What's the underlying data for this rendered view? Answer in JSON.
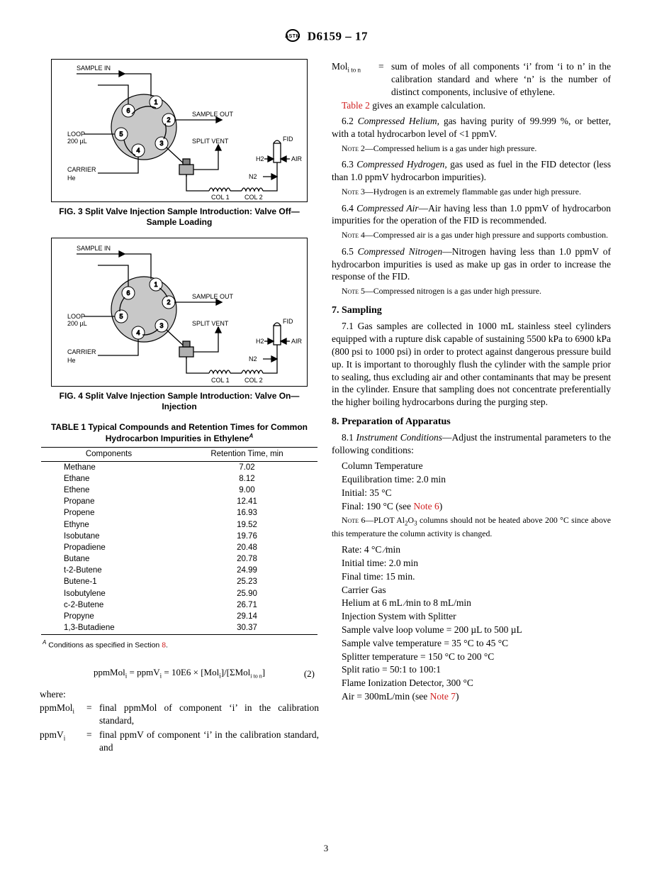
{
  "header": {
    "designation": "D6159 – 17"
  },
  "fig3": {
    "caption": "FIG. 3 Split Valve Injection Sample Introduction: Valve Off—Sample Loading",
    "labels": {
      "sample_in": "SAMPLE IN",
      "sample_out": "SAMPLE OUT",
      "loop": "LOOP",
      "loop_vol": "200 µL",
      "carrier": "CARRIER",
      "he": "He",
      "split_vent": "SPLIT VENT",
      "n2": "N2",
      "h2": "H2",
      "air": "AIR",
      "fid": "FID",
      "col1": "COL 1",
      "col2": "COL 2"
    },
    "ports": [
      "1",
      "2",
      "3",
      "4",
      "5",
      "6"
    ],
    "colors": {
      "stroke": "#000000",
      "fill_circle": "#c8c8c8",
      "port_fill": "#ffffff"
    }
  },
  "fig4": {
    "caption": "FIG. 4 Split Valve Injection Sample Introduction: Valve On—Injection",
    "labels": {
      "sample_in": "SAMPLE IN",
      "sample_out": "SAMPLE OUT",
      "loop": "LOOP",
      "loop_vol": "200 µL",
      "carrier": "CARRIER",
      "he": "He",
      "split_vent": "SPLIT VENT",
      "n2": "N2",
      "h2": "H2",
      "air": "AIR",
      "fid": "FID",
      "col1": "COL 1",
      "col2": "COL 2"
    },
    "ports": [
      "1",
      "2",
      "3",
      "4",
      "5",
      "6"
    ],
    "colors": {
      "stroke": "#000000",
      "fill_circle": "#c8c8c8",
      "port_fill": "#ffffff"
    }
  },
  "table1": {
    "title_l1": "TABLE 1 Typical Compounds and Retention Times for Common",
    "title_l2": "Hydrocarbon Impurities in Ethylene",
    "title_sup": "A",
    "headers": [
      "Components",
      "Retention Time, min"
    ],
    "rows": [
      [
        "Methane",
        "7.02"
      ],
      [
        "Ethane",
        "8.12"
      ],
      [
        "Ethene",
        "9.00"
      ],
      [
        "Propane",
        "12.41"
      ],
      [
        "Propene",
        "16.93"
      ],
      [
        "Ethyne",
        "19.52"
      ],
      [
        "Isobutane",
        "19.76"
      ],
      [
        "Propadiene",
        "20.48"
      ],
      [
        "Butane",
        "20.78"
      ],
      [
        "t-2-Butene",
        "24.99"
      ],
      [
        "Butene-1",
        "25.23"
      ],
      [
        "Isobutylene",
        "25.90"
      ],
      [
        "c-2-Butene",
        "26.71"
      ],
      [
        "Propyne",
        "29.14"
      ],
      [
        "1,3-Butadiene",
        "30.37"
      ]
    ],
    "footnote_pre": "Conditions as specified in Section ",
    "footnote_link": "8",
    "footnote_post": "."
  },
  "equation": {
    "text": "ppmMol",
    "body": " =  ppmV",
    "body2": " = 10E6 × [Mol",
    "body3": "]/[ΣMol",
    "body4": "]",
    "sub_i": "i",
    "sub_iton": "i to n",
    "num": "(2)"
  },
  "defs": {
    "where": "where:",
    "rows": [
      {
        "term": "ppmMol",
        "sub": "i",
        "body": "final ppmMol of component ‘i’ in the calibration standard,"
      },
      {
        "term": "ppmV",
        "sub": "i",
        "body": "final ppmV of component ‘i’ in the calibration standard, and"
      },
      {
        "term": "Mol",
        "sub": "i to n",
        "body": "sum of moles of all components ‘i’ from ‘i to n’ in the calibration standard and where ‘n’ is the number of distinct components, inclusive of ethylene."
      }
    ],
    "eq": "="
  },
  "right": {
    "table2_line_pre": "Table 2",
    "table2_line_post": " gives an example calculation.",
    "p62": "6.2 Compressed Helium, gas having purity of 99.999 %, or better, with a total hydrocarbon level of <1 ppmV.",
    "note2": "Note 2—Compressed helium is a gas under high pressure.",
    "p63": "6.3 Compressed Hydrogen, gas used as fuel in the FID detector (less than 1.0 ppmV hydrocarbon impurities).",
    "note3": "Note 3—Hydrogen is an extremely flammable gas under high pressure.",
    "p64": "6.4 Compressed Air—Air having less than 1.0 ppmV of hydrocarbon impurities for the operation of the FID is recommended.",
    "note4": "Note 4—Compressed air is a gas under high pressure and supports combustion.",
    "p65": "6.5 Compressed Nitrogen—Nitrogen having less than 1.0 ppmV of hydrocarbon impurities is used as make up gas in order to increase the response of the FID.",
    "note5": "Note 5—Compressed nitrogen is a gas under high pressure.",
    "sec7": "7. Sampling",
    "p71": "7.1 Gas samples are collected in 1000 mL stainless steel cylinders equipped with a rupture disk capable of sustaining 5500 kPa to 6900 kPa (800 psi to 1000 psi) in order to protect against dangerous pressure build up. It is important to thoroughly flush the cylinder with the sample prior to sealing, thus excluding air and other contaminants that may be present in the cylinder. Ensure that sampling does not concentrate preferentially the higher boiling hydrocarbons during the purging step.",
    "sec8": "8. Preparation of Apparatus",
    "p81_lead": "8.1 Instrument Conditions—Adjust the instrumental parameters to the following conditions:",
    "cond1": "Column Temperature",
    "cond2": "Equilibration time: 2.0 min",
    "cond3": "Initial: 35 °C",
    "cond4_pre": "Final: 190 °C (see ",
    "cond4_link": "Note 6",
    "cond4_post": ")",
    "note6": "Note 6—PLOT Al₂O₃ columns should not be heated above 200 °C since above this temperature the column activity is changed.",
    "cond5": "Rate: 4 °C ⁄min",
    "cond6": "Initial time: 2.0 min",
    "cond7": "Final time: 15 min.",
    "cond8": "Carrier Gas",
    "cond9": "Helium at 6 mL ⁄min to 8 mL/min",
    "cond10": "Injection System with Splitter",
    "cond11": "Sample valve loop volume = 200 µL to 500 µL",
    "cond12": "Sample valve temperature = 35 °C to 45 °C",
    "cond13": "Splitter temperature = 150 °C to 200 °C",
    "cond14": "Split ratio = 50:1 to 100:1",
    "cond15": "Flame Ionization Detector, 300 °C",
    "cond16_pre": "Air = 300mL/min (see ",
    "cond16_link": "Note 7",
    "cond16_post": ")"
  },
  "page_number": "3"
}
